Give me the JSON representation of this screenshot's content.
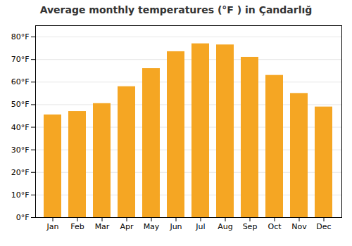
{
  "chart_data": {
    "type": "bar",
    "title": "Average monthly temperatures (°F ) in Çandarlığ",
    "categories": [
      "Jan",
      "Feb",
      "Mar",
      "Apr",
      "May",
      "Jun",
      "Jul",
      "Aug",
      "Sep",
      "Oct",
      "Nov",
      "Dec"
    ],
    "values": [
      45.5,
      47,
      50.5,
      58,
      66,
      73.5,
      77,
      76.5,
      71,
      63,
      55,
      49
    ],
    "color": "#F5A623",
    "ylim": [
      0,
      85
    ],
    "yticks": [
      {
        "value": 0,
        "label": "0°F"
      },
      {
        "value": 10,
        "label": "10°F"
      },
      {
        "value": 20,
        "label": "20°F"
      },
      {
        "value": 30,
        "label": "30°F"
      },
      {
        "value": 40,
        "label": "40°F"
      },
      {
        "value": 50,
        "label": "50°F"
      },
      {
        "value": 60,
        "label": "60°F"
      },
      {
        "value": 70,
        "label": "70°F"
      },
      {
        "value": 80,
        "label": "80°F"
      }
    ],
    "grid": true
  }
}
